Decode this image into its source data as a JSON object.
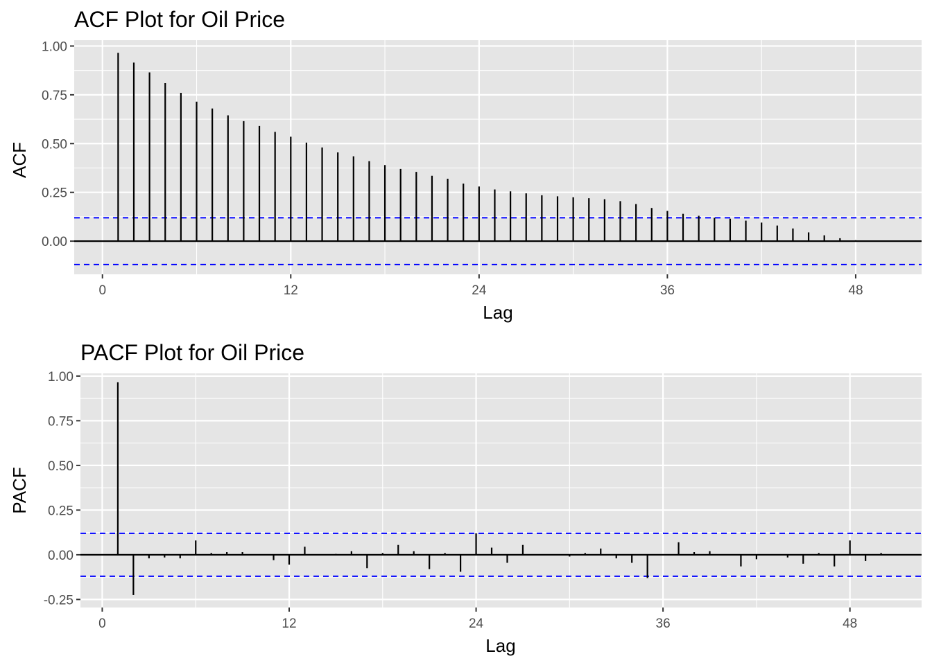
{
  "chart_data": [
    {
      "type": "bar",
      "title": "ACF Plot for Oil Price",
      "xlabel": "Lag",
      "ylabel": "ACF",
      "xlim": [
        -1.8,
        52.2
      ],
      "ylim": [
        -0.17,
        1.03
      ],
      "x_ticks": [
        0,
        12,
        24,
        36,
        48
      ],
      "x_tick_labels": [
        "0",
        "12",
        "24",
        "36",
        "48"
      ],
      "y_ticks": [
        0.0,
        0.25,
        0.5,
        0.75,
        1.0
      ],
      "y_tick_labels": [
        "0.00",
        "0.25",
        "0.50",
        "0.75",
        "1.00"
      ],
      "conf_limit": 0.12,
      "grid": true,
      "colors": {
        "panel": "#e5e5e5",
        "grid": "#ffffff",
        "bar": "#000000",
        "conf": "#0000ff"
      },
      "lags": [
        1,
        2,
        3,
        4,
        5,
        6,
        7,
        8,
        9,
        10,
        11,
        12,
        13,
        14,
        15,
        16,
        17,
        18,
        19,
        20,
        21,
        22,
        23,
        24,
        25,
        26,
        27,
        28,
        29,
        30,
        31,
        32,
        33,
        34,
        35,
        36,
        37,
        38,
        39,
        40,
        41,
        42,
        43,
        44,
        45,
        46,
        47,
        48,
        49
      ],
      "values": [
        0.965,
        0.915,
        0.865,
        0.81,
        0.76,
        0.715,
        0.68,
        0.645,
        0.615,
        0.59,
        0.56,
        0.535,
        0.505,
        0.48,
        0.455,
        0.435,
        0.41,
        0.39,
        0.37,
        0.355,
        0.335,
        0.32,
        0.295,
        0.28,
        0.265,
        0.255,
        0.245,
        0.235,
        0.23,
        0.225,
        0.22,
        0.215,
        0.205,
        0.19,
        0.17,
        0.155,
        0.14,
        0.13,
        0.12,
        0.115,
        0.105,
        0.095,
        0.08,
        0.065,
        0.045,
        0.03,
        0.015,
        0.005,
        0.002
      ]
    },
    {
      "type": "bar",
      "title": "PACF Plot for Oil Price",
      "xlabel": "Lag",
      "ylabel": "PACF",
      "xlim": [
        -1.4,
        52.6
      ],
      "ylim": [
        -0.295,
        1.015
      ],
      "x_ticks": [
        0,
        12,
        24,
        36,
        48
      ],
      "x_tick_labels": [
        "0",
        "12",
        "24",
        "36",
        "48"
      ],
      "y_ticks": [
        -0.25,
        0.0,
        0.25,
        0.5,
        0.75,
        1.0
      ],
      "y_tick_labels": [
        "-0.25",
        "0.00",
        "0.25",
        "0.50",
        "0.75",
        "1.00"
      ],
      "conf_limit": 0.12,
      "grid": true,
      "colors": {
        "panel": "#e5e5e5",
        "grid": "#ffffff",
        "bar": "#000000",
        "conf": "#0000ff"
      },
      "lags": [
        1,
        2,
        3,
        4,
        5,
        6,
        7,
        8,
        9,
        10,
        11,
        12,
        13,
        14,
        15,
        16,
        17,
        18,
        19,
        20,
        21,
        22,
        23,
        24,
        25,
        26,
        27,
        28,
        29,
        30,
        31,
        32,
        33,
        34,
        35,
        36,
        37,
        38,
        39,
        40,
        41,
        42,
        43,
        44,
        45,
        46,
        47,
        48,
        49,
        50
      ],
      "values": [
        0.965,
        -0.225,
        -0.02,
        -0.015,
        -0.02,
        0.08,
        0.01,
        0.015,
        0.015,
        0.002,
        -0.03,
        -0.055,
        0.045,
        0.002,
        0.005,
        0.02,
        -0.075,
        0.01,
        0.055,
        0.02,
        -0.08,
        0.01,
        -0.095,
        0.12,
        0.04,
        -0.045,
        0.055,
        0.002,
        0.002,
        -0.01,
        0.01,
        0.035,
        -0.02,
        -0.045,
        -0.13,
        0.002,
        0.07,
        0.015,
        0.02,
        0.002,
        -0.065,
        -0.025,
        0.002,
        -0.015,
        -0.05,
        0.01,
        -0.065,
        0.08,
        -0.035,
        0.01
      ]
    }
  ]
}
